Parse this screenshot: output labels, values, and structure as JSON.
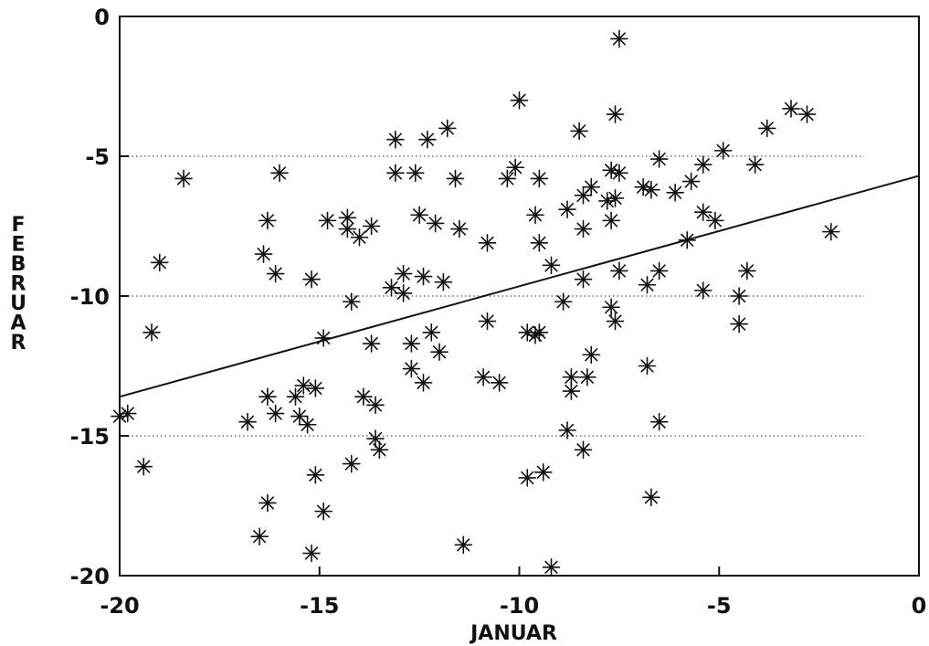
{
  "chart_data": {
    "type": "scatter",
    "title": "",
    "xlabel": "JANUAR",
    "ylabel": "FEBRUAR",
    "xlim": [
      -20,
      0
    ],
    "ylim": [
      -20,
      0
    ],
    "x_ticks": [
      -20,
      -15,
      -10,
      -5,
      0
    ],
    "y_ticks": [
      -20,
      -15,
      -10,
      -5,
      0
    ],
    "x_tick_labels": [
      "-20",
      "-15",
      "-10",
      "-5",
      "0"
    ],
    "y_tick_labels": [
      "-20",
      "-15",
      "-10",
      "-5",
      "0"
    ],
    "grid": "dotted horizontal at -5, -10, -15",
    "marker": "asterisk",
    "regression_line": {
      "x": [
        -20,
        0
      ],
      "y": [
        -13.6,
        -5.7
      ]
    },
    "points": [
      [
        -7.5,
        -0.8
      ],
      [
        -10.0,
        -3.0
      ],
      [
        -3.2,
        -3.3
      ],
      [
        -2.8,
        -3.5
      ],
      [
        -7.6,
        -3.5
      ],
      [
        -13.1,
        -4.4
      ],
      [
        -11.8,
        -4.0
      ],
      [
        -12.3,
        -4.4
      ],
      [
        -8.5,
        -4.1
      ],
      [
        -3.8,
        -4.0
      ],
      [
        -4.9,
        -4.8
      ],
      [
        -18.4,
        -5.8
      ],
      [
        -16.0,
        -5.6
      ],
      [
        -13.1,
        -5.6
      ],
      [
        -12.6,
        -5.6
      ],
      [
        -11.6,
        -5.8
      ],
      [
        -10.1,
        -5.4
      ],
      [
        -10.3,
        -5.8
      ],
      [
        -9.5,
        -5.8
      ],
      [
        -7.7,
        -5.5
      ],
      [
        -7.5,
        -5.6
      ],
      [
        -6.5,
        -5.1
      ],
      [
        -5.4,
        -5.3
      ],
      [
        -4.1,
        -5.3
      ],
      [
        -5.7,
        -5.9
      ],
      [
        -6.9,
        -6.1
      ],
      [
        -6.7,
        -6.2
      ],
      [
        -6.1,
        -6.3
      ],
      [
        -8.2,
        -6.1
      ],
      [
        -8.4,
        -6.4
      ],
      [
        -7.8,
        -6.6
      ],
      [
        -7.6,
        -6.5
      ],
      [
        -8.8,
        -6.9
      ],
      [
        -9.6,
        -7.1
      ],
      [
        -12.5,
        -7.1
      ],
      [
        -12.1,
        -7.4
      ],
      [
        -14.8,
        -7.3
      ],
      [
        -14.3,
        -7.2
      ],
      [
        -14.3,
        -7.6
      ],
      [
        -14.0,
        -7.9
      ],
      [
        -13.7,
        -7.5
      ],
      [
        -11.5,
        -7.6
      ],
      [
        -10.8,
        -8.1
      ],
      [
        -9.5,
        -8.1
      ],
      [
        -7.7,
        -7.3
      ],
      [
        -8.4,
        -7.6
      ],
      [
        -5.4,
        -7.0
      ],
      [
        -5.1,
        -7.3
      ],
      [
        -5.8,
        -8.0
      ],
      [
        -2.2,
        -7.7
      ],
      [
        -16.3,
        -7.3
      ],
      [
        -16.4,
        -8.5
      ],
      [
        -16.1,
        -9.2
      ],
      [
        -19.0,
        -8.8
      ],
      [
        -15.2,
        -9.4
      ],
      [
        -13.2,
        -9.7
      ],
      [
        -12.9,
        -9.2
      ],
      [
        -12.9,
        -9.9
      ],
      [
        -12.4,
        -9.3
      ],
      [
        -11.9,
        -9.5
      ],
      [
        -9.2,
        -8.9
      ],
      [
        -8.4,
        -9.4
      ],
      [
        -7.5,
        -9.1
      ],
      [
        -6.5,
        -9.1
      ],
      [
        -6.8,
        -9.6
      ],
      [
        -5.4,
        -9.8
      ],
      [
        -4.3,
        -9.1
      ],
      [
        -4.5,
        -10.0
      ],
      [
        -14.2,
        -10.2
      ],
      [
        -8.9,
        -10.2
      ],
      [
        -7.7,
        -10.4
      ],
      [
        -7.6,
        -10.9
      ],
      [
        -10.8,
        -10.9
      ],
      [
        -19.2,
        -11.3
      ],
      [
        -14.9,
        -11.5
      ],
      [
        -12.2,
        -11.3
      ],
      [
        -9.8,
        -11.3
      ],
      [
        -9.6,
        -11.4
      ],
      [
        -9.5,
        -11.3
      ],
      [
        -4.5,
        -11.0
      ],
      [
        -13.7,
        -11.7
      ],
      [
        -12.7,
        -11.7
      ],
      [
        -12.0,
        -12.0
      ],
      [
        -8.2,
        -12.1
      ],
      [
        -12.7,
        -12.6
      ],
      [
        -12.4,
        -13.1
      ],
      [
        -10.9,
        -12.9
      ],
      [
        -10.5,
        -13.1
      ],
      [
        -8.7,
        -12.9
      ],
      [
        -8.7,
        -13.4
      ],
      [
        -8.3,
        -12.9
      ],
      [
        -6.8,
        -12.5
      ],
      [
        -15.4,
        -13.2
      ],
      [
        -15.1,
        -13.3
      ],
      [
        -15.6,
        -13.6
      ],
      [
        -16.3,
        -13.6
      ],
      [
        -13.9,
        -13.6
      ],
      [
        -13.6,
        -13.9
      ],
      [
        -19.8,
        -14.2
      ],
      [
        -20.0,
        -14.3
      ],
      [
        -16.1,
        -14.2
      ],
      [
        -15.5,
        -14.3
      ],
      [
        -15.3,
        -14.6
      ],
      [
        -16.8,
        -14.5
      ],
      [
        -6.5,
        -14.5
      ],
      [
        -8.8,
        -14.8
      ],
      [
        -13.6,
        -15.1
      ],
      [
        -13.5,
        -15.5
      ],
      [
        -8.4,
        -15.5
      ],
      [
        -19.4,
        -16.1
      ],
      [
        -15.1,
        -16.4
      ],
      [
        -14.2,
        -16.0
      ],
      [
        -9.8,
        -16.5
      ],
      [
        -9.4,
        -16.3
      ],
      [
        -16.3,
        -17.4
      ],
      [
        -14.9,
        -17.7
      ],
      [
        -6.7,
        -17.2
      ],
      [
        -16.5,
        -18.6
      ],
      [
        -11.4,
        -18.9
      ],
      [
        -15.2,
        -19.2
      ],
      [
        -9.2,
        -19.7
      ]
    ]
  }
}
